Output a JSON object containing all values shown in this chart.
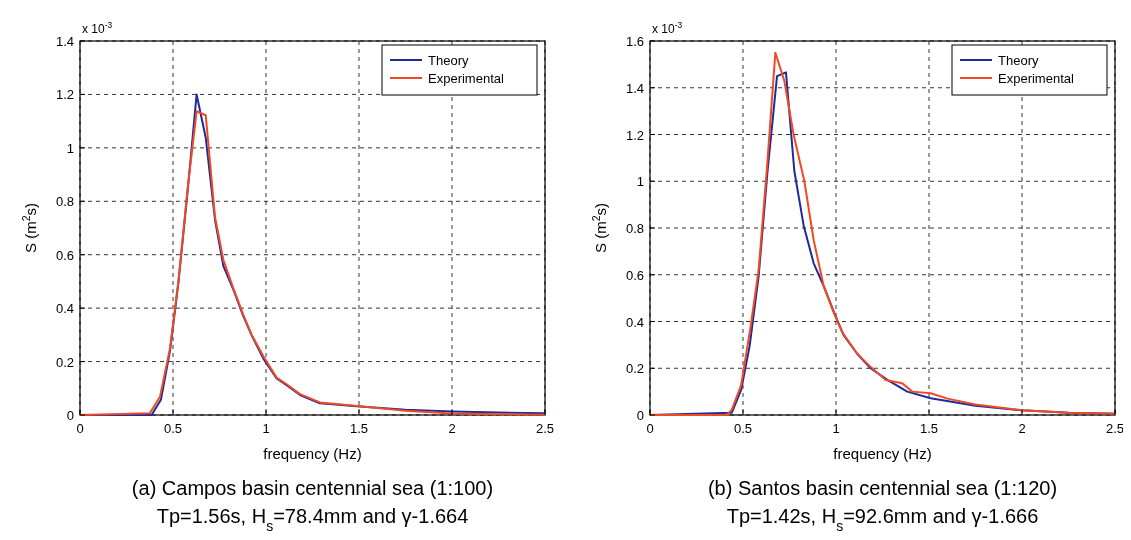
{
  "chart_data": [
    {
      "type": "line",
      "xlabel": "frequency (Hz)",
      "ylabel": "S (m$^{2}$s)",
      "annotations": [
        "x 10$^{-3}$",
        "(a) Campos basin centennial sea (1:100)",
        "Tp=1.56s, H$_{s}$=78.4mm and γ-1.664"
      ],
      "xlim": [
        0,
        2.5
      ],
      "ylim": [
        0,
        1.4
      ],
      "xticks": [
        0,
        0.5,
        1,
        1.5,
        2,
        2.5
      ],
      "yticks": [
        0,
        0.2,
        0.4,
        0.6,
        0.8,
        1,
        1.2,
        1.4
      ],
      "grid": true,
      "legend": "top right",
      "marker": "none",
      "line_style": "solid",
      "series": [
        {
          "name": "Theory",
          "color": "#1f2a9c",
          "x": [
            0,
            0.385,
            0.435,
            0.484,
            0.529,
            0.579,
            0.627,
            0.676,
            0.726,
            0.771,
            0.824,
            0.878,
            0.923,
            0.986,
            1.057,
            1.111,
            1.183,
            1.29,
            1.505,
            1.75,
            2.0,
            2.25,
            2.5
          ],
          "values": [
            0,
            0,
            0.057,
            0.24,
            0.495,
            0.84,
            1.2,
            1.038,
            0.73,
            0.557,
            0.47,
            0.37,
            0.298,
            0.211,
            0.137,
            0.112,
            0.075,
            0.044,
            0.032,
            0.02,
            0.013,
            0.009,
            0.007
          ]
        },
        {
          "name": "Experimental",
          "color": "#f04a23",
          "x": [
            0,
            0.376,
            0.43,
            0.484,
            0.529,
            0.579,
            0.627,
            0.676,
            0.726,
            0.771,
            0.824,
            0.878,
            0.923,
            0.986,
            1.057,
            1.111,
            1.183,
            1.29,
            1.505,
            1.75,
            2.0,
            2.25,
            2.5
          ],
          "values": [
            0,
            0.007,
            0.068,
            0.25,
            0.5,
            0.85,
            1.137,
            1.122,
            0.74,
            0.58,
            0.475,
            0.375,
            0.3,
            0.22,
            0.14,
            0.115,
            0.078,
            0.047,
            0.033,
            0.016,
            0.006,
            0.003,
            0.001
          ]
        }
      ]
    },
    {
      "type": "line",
      "xlabel": "frequency (Hz)",
      "ylabel": "S (m$^{2}$s)",
      "annotations": [
        "x 10$^{-3}$",
        "(b) Santos basin centennial sea (1:120)",
        "Tp=1.42s, H$_{s}$=92.6mm and γ-1.666"
      ],
      "xlim": [
        0,
        2.5
      ],
      "ylim": [
        0,
        1.6
      ],
      "xticks": [
        0,
        0.5,
        1,
        1.5,
        2,
        2.5
      ],
      "yticks": [
        0,
        0.2,
        0.4,
        0.6,
        0.8,
        1,
        1.2,
        1.4,
        1.6
      ],
      "grid": true,
      "legend": "top right",
      "marker": "none",
      "line_style": "solid",
      "series": [
        {
          "name": "Theory",
          "color": "#1f2a9c",
          "x": [
            0,
            0.44,
            0.49,
            0.536,
            0.584,
            0.632,
            0.683,
            0.731,
            0.776,
            0.826,
            0.88,
            0.934,
            0.997,
            1.042,
            1.114,
            1.186,
            1.276,
            1.383,
            1.509,
            1.75,
            2.0,
            2.25,
            2.5
          ],
          "values": [
            0,
            0.01,
            0.107,
            0.297,
            0.593,
            1.044,
            1.45,
            1.466,
            1.044,
            0.811,
            0.649,
            0.551,
            0.424,
            0.34,
            0.262,
            0.2,
            0.15,
            0.1,
            0.072,
            0.04,
            0.02,
            0.01,
            0.005
          ]
        },
        {
          "name": "Experimental",
          "color": "#f04a23",
          "x": [
            0,
            0.413,
            0.44,
            0.49,
            0.539,
            0.584,
            0.629,
            0.674,
            0.722,
            0.772,
            0.83,
            0.88,
            0.934,
            0.988,
            1.033,
            1.114,
            1.186,
            1.267,
            1.356,
            1.41,
            1.509,
            1.6,
            1.75,
            2.0,
            2.25,
            2.5
          ],
          "values": [
            0,
            0,
            0.023,
            0.128,
            0.368,
            0.62,
            1.058,
            1.55,
            1.43,
            1.2,
            1.0,
            0.748,
            0.551,
            0.438,
            0.355,
            0.262,
            0.206,
            0.15,
            0.136,
            0.1,
            0.093,
            0.07,
            0.045,
            0.02,
            0.01,
            0.005
          ]
        }
      ]
    }
  ]
}
